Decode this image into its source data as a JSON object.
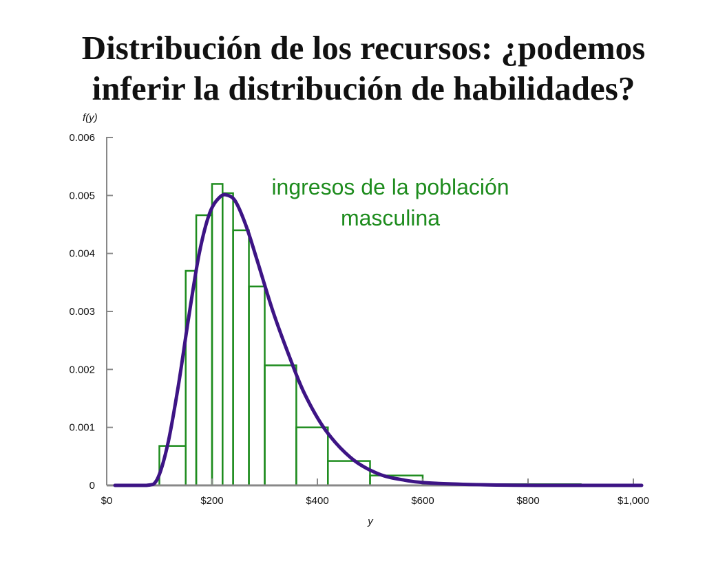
{
  "title_line1": "Distribución de los recursos: ¿podemos",
  "title_line2": "inferir la distribución de habilidades?",
  "chart_data": {
    "type": "bar",
    "xlabel": "y",
    "ylabel": "f(y)",
    "xlim": [
      0,
      1000
    ],
    "ylim": [
      0,
      0.006
    ],
    "xticks": [
      0,
      200,
      400,
      600,
      800,
      1000
    ],
    "xtick_labels": [
      "$0",
      "$200",
      "$400",
      "$600",
      "$800",
      "$1,000"
    ],
    "yticks": [
      0,
      0.001,
      0.002,
      0.003,
      0.004,
      0.005,
      0.006
    ],
    "ytick_labels": [
      "0",
      "0.001",
      "0.002",
      "0.003",
      "0.004",
      "0.005",
      "0.006"
    ],
    "annotation_line1": "ingresos de la población",
    "annotation_line2": "masculina",
    "histogram": {
      "color": "#1e8c1e",
      "bins": [
        {
          "x0": 0,
          "x1": 100,
          "value": 0.0
        },
        {
          "x0": 100,
          "x1": 150,
          "value": 0.00068
        },
        {
          "x0": 150,
          "x1": 170,
          "value": 0.0037
        },
        {
          "x0": 170,
          "x1": 200,
          "value": 0.00466
        },
        {
          "x0": 200,
          "x1": 220,
          "value": 0.0052
        },
        {
          "x0": 220,
          "x1": 240,
          "value": 0.00504
        },
        {
          "x0": 240,
          "x1": 270,
          "value": 0.0044
        },
        {
          "x0": 270,
          "x1": 300,
          "value": 0.00343
        },
        {
          "x0": 300,
          "x1": 360,
          "value": 0.00207
        },
        {
          "x0": 360,
          "x1": 420,
          "value": 0.001
        },
        {
          "x0": 420,
          "x1": 500,
          "value": 0.00042
        },
        {
          "x0": 500,
          "x1": 600,
          "value": 0.00017
        },
        {
          "x0": 600,
          "x1": 900,
          "value": 2e-05
        }
      ]
    },
    "density_curve": {
      "color": "#3d1485",
      "x": [
        0,
        60,
        80,
        100,
        120,
        140,
        160,
        180,
        200,
        215,
        230,
        250,
        270,
        300,
        330,
        360,
        400,
        450,
        500,
        550,
        600,
        700,
        800,
        900,
        1000
      ],
      "y": [
        0,
        0,
        0.0001,
        0.0007,
        0.0017,
        0.0029,
        0.004,
        0.0047,
        0.00498,
        0.005,
        0.00488,
        0.00445,
        0.00388,
        0.003,
        0.00225,
        0.00158,
        0.00095,
        0.00046,
        0.0002,
        9e-05,
        4e-05,
        1e-05,
        0.0,
        0.0,
        0.0
      ]
    }
  }
}
